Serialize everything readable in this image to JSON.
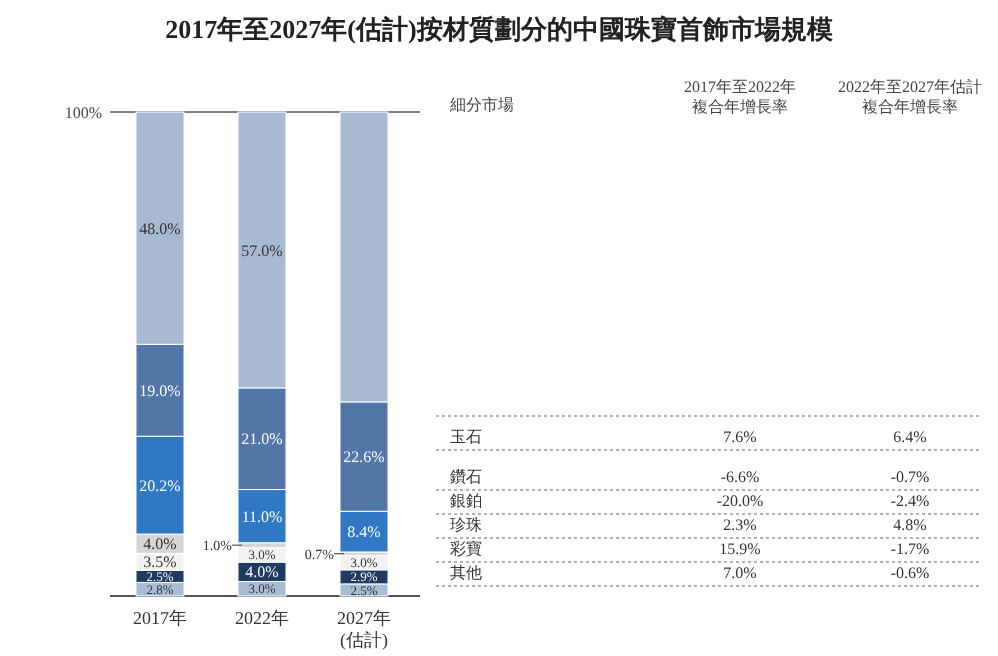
{
  "chart_data": {
    "type": "bar",
    "stacked": true,
    "title": "2017年至2027年(估計)按材質劃分的中國珠寶首飾市場規模",
    "categories": [
      "2017年",
      "2022年",
      "2027年\n(估計)"
    ],
    "ylim": [
      0,
      100
    ],
    "yticks": [
      {
        "value": 100,
        "label": "100%"
      }
    ],
    "series": [
      {
        "name": "其他",
        "color": "#a9bcd6",
        "values": [
          2.8,
          3.0,
          2.5
        ],
        "value_labels": [
          "2.8%",
          "3.0%",
          "2.5%"
        ]
      },
      {
        "name": "彩寶",
        "color": "#1f3a63",
        "values": [
          2.5,
          4.0,
          2.9
        ],
        "value_labels": [
          "2.5%",
          "4.0%",
          "2.9%"
        ]
      },
      {
        "name": "珍珠",
        "color": "#f2f2f2",
        "values": [
          3.5,
          3.0,
          3.0
        ],
        "value_labels": [
          "3.5%",
          "3.0%",
          "3.0%"
        ]
      },
      {
        "name": "銀鉑",
        "color": "#d6d6d6",
        "values": [
          4.0,
          1.0,
          0.7
        ],
        "value_labels": [
          "4.0%",
          "1.0%",
          "0.7%"
        ]
      },
      {
        "name": "鑽石",
        "color": "#2f78c4",
        "values": [
          20.2,
          11.0,
          8.4
        ],
        "value_labels": [
          "20.2%",
          "11.0%",
          "8.4%"
        ]
      },
      {
        "name": "玉石",
        "color": "#5276a8",
        "values": [
          19.0,
          21.0,
          22.6
        ],
        "value_labels": [
          "19.0%",
          "21.0%",
          "22.6%"
        ]
      },
      {
        "color": "#a8bad2",
        "values": [
          48.0,
          57.0,
          59.9
        ],
        "value_labels": [
          "48.0%",
          "57.0%",
          null
        ]
      }
    ],
    "annotations": [
      "細分市場",
      "2017年至2022年",
      "複合年增長率",
      "2022年至2027年估計",
      "複合年增長率",
      "7.6%",
      "6.4%",
      "-6.6%",
      "-0.7%",
      "-20.0%",
      "-2.4%",
      "2.3%",
      "4.8%",
      "15.9%",
      "-1.7%",
      "7.0%",
      "-0.6%"
    ]
  }
}
